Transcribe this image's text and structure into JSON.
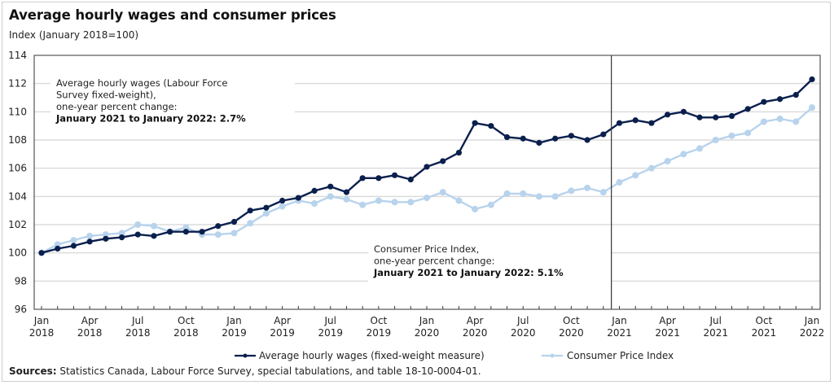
{
  "chart_data": {
    "type": "line",
    "title": "Average hourly wages and consumer prices",
    "ylabel": "Index (January 2018=100)",
    "xlabel": "",
    "ylim": [
      96,
      114
    ],
    "yticks": [
      96,
      98,
      100,
      102,
      104,
      106,
      108,
      110,
      112,
      114
    ],
    "grid": true,
    "legend_position": "bottom",
    "x_tick_labels": [
      {
        "month": "Jan",
        "year": "2018",
        "index": 0
      },
      {
        "month": "Apr",
        "year": "2018",
        "index": 3
      },
      {
        "month": "Jul",
        "year": "2018",
        "index": 6
      },
      {
        "month": "Oct",
        "year": "2018",
        "index": 9
      },
      {
        "month": "Jan",
        "year": "2019",
        "index": 12
      },
      {
        "month": "Apr",
        "year": "2019",
        "index": 15
      },
      {
        "month": "Jul",
        "year": "2019",
        "index": 18
      },
      {
        "month": "Oct",
        "year": "2019",
        "index": 21
      },
      {
        "month": "Jan",
        "year": "2020",
        "index": 24
      },
      {
        "month": "Apr",
        "year": "2020",
        "index": 27
      },
      {
        "month": "Jul",
        "year": "2020",
        "index": 30
      },
      {
        "month": "Oct",
        "year": "2020",
        "index": 33
      },
      {
        "month": "Jan",
        "year": "2021",
        "index": 36
      },
      {
        "month": "Apr",
        "year": "2021",
        "index": 39
      },
      {
        "month": "Jul",
        "year": "2021",
        "index": 42
      },
      {
        "month": "Oct",
        "year": "2021",
        "index": 45
      },
      {
        "month": "Jan",
        "year": "2022",
        "index": 48
      }
    ],
    "x": [
      "2018-01",
      "2018-02",
      "2018-03",
      "2018-04",
      "2018-05",
      "2018-06",
      "2018-07",
      "2018-08",
      "2018-09",
      "2018-10",
      "2018-11",
      "2018-12",
      "2019-01",
      "2019-02",
      "2019-03",
      "2019-04",
      "2019-05",
      "2019-06",
      "2019-07",
      "2019-08",
      "2019-09",
      "2019-10",
      "2019-11",
      "2019-12",
      "2020-01",
      "2020-02",
      "2020-03",
      "2020-04",
      "2020-05",
      "2020-06",
      "2020-07",
      "2020-08",
      "2020-09",
      "2020-10",
      "2020-11",
      "2020-12",
      "2021-01",
      "2021-02",
      "2021-03",
      "2021-04",
      "2021-05",
      "2021-06",
      "2021-07",
      "2021-08",
      "2021-09",
      "2021-10",
      "2021-11",
      "2021-12",
      "2022-01"
    ],
    "series": [
      {
        "name": "Average hourly wages (fixed-weight measure)",
        "color": "#0b1f4d",
        "values": [
          100.0,
          100.3,
          100.5,
          100.8,
          101.0,
          101.1,
          101.3,
          101.2,
          101.5,
          101.5,
          101.5,
          101.9,
          102.2,
          103.0,
          103.2,
          103.7,
          103.9,
          104.4,
          104.7,
          104.3,
          105.3,
          105.3,
          105.5,
          105.2,
          106.1,
          106.5,
          107.1,
          109.2,
          109.0,
          108.2,
          108.1,
          107.8,
          108.1,
          108.3,
          108.0,
          108.4,
          109.2,
          109.4,
          109.2,
          109.8,
          110.0,
          109.6,
          109.6,
          109.7,
          110.2,
          110.7,
          110.9,
          111.2,
          112.3
        ]
      },
      {
        "name": "Consumer Price Index",
        "color": "#b8d3ec",
        "values": [
          100.0,
          100.6,
          100.9,
          101.2,
          101.3,
          101.4,
          102.0,
          101.9,
          101.5,
          101.8,
          101.3,
          101.3,
          101.4,
          102.1,
          102.8,
          103.3,
          103.7,
          103.5,
          104.0,
          103.8,
          103.4,
          103.7,
          103.6,
          103.6,
          103.9,
          104.3,
          103.7,
          103.1,
          103.4,
          104.2,
          104.2,
          104.0,
          104.0,
          104.4,
          104.6,
          104.3,
          105.0,
          105.5,
          106.0,
          106.5,
          107.0,
          107.4,
          108.0,
          108.3,
          108.5,
          109.3,
          109.5,
          109.3,
          110.3
        ]
      }
    ],
    "reference_line": {
      "type": "vertical",
      "at": "2020-12/2021-01"
    },
    "annotations": [
      {
        "lines": [
          "Average hourly wages (Labour Force",
          "Survey fixed-weight),",
          "one-year percent change:"
        ],
        "bold": "January 2021 to January 2022: 2.7%"
      },
      {
        "lines": [
          "Consumer Price Index,",
          "one-year percent change:"
        ],
        "bold": "January 2021 to January 2022: 5.1%"
      }
    ]
  },
  "header": {
    "title": "Average hourly wages and consumer prices",
    "subtitle": "Index (January 2018=100)"
  },
  "footer": {
    "sources_label": "Sources:",
    "sources_text": " Statistics Canada, Labour Force Survey, special tabulations, and table 18-10-0004-01."
  }
}
